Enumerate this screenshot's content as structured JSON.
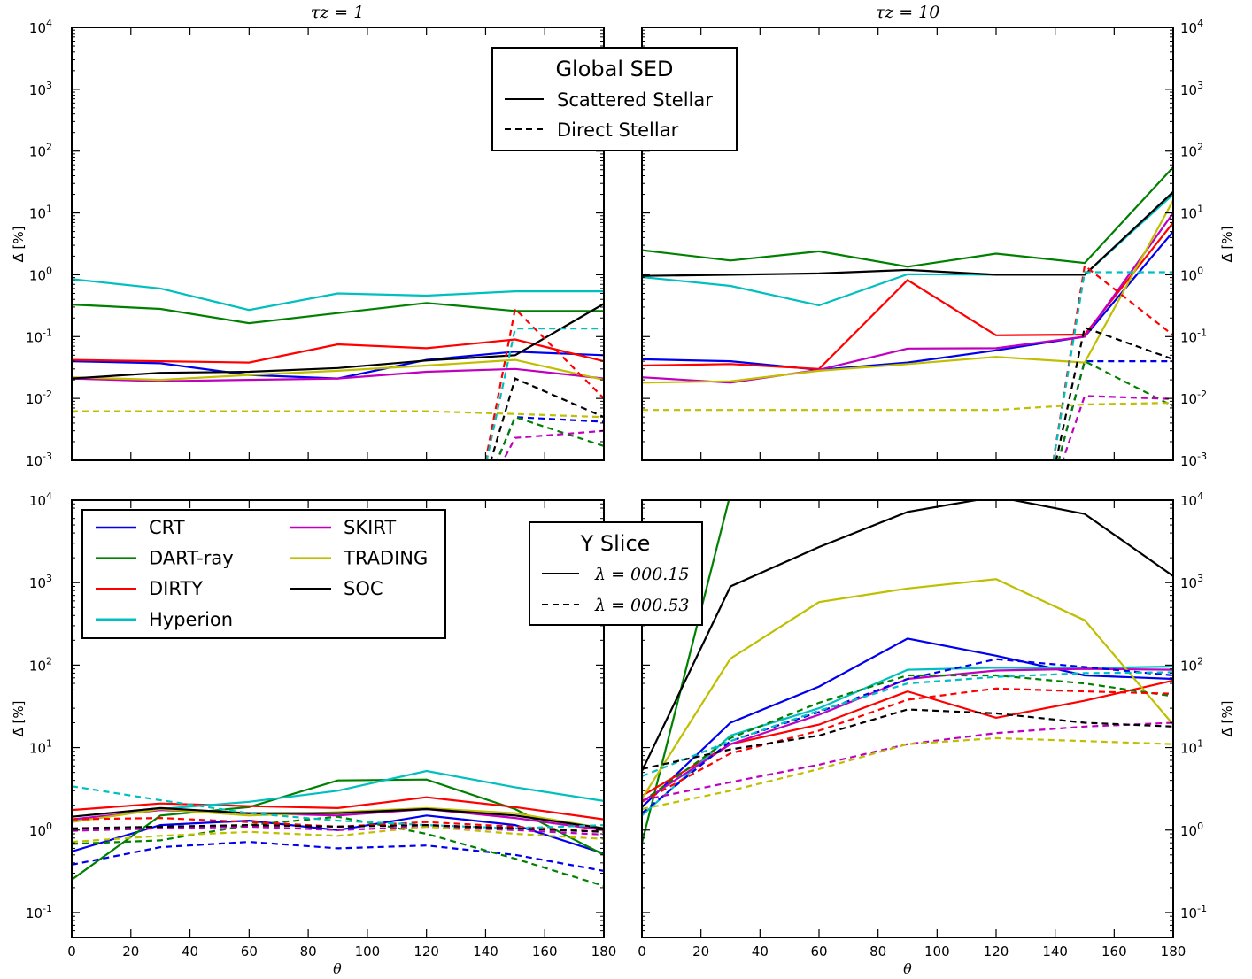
{
  "colors": {
    "CRT": "#0000ee",
    "DART-ray": "#008000",
    "DIRTY": "#ff0000",
    "Hyperion": "#00bfbf",
    "SKIRT": "#bf00bf",
    "TRADING": "#bfbf00",
    "SOC": "#000000"
  },
  "axes": {
    "xlabel": "θ",
    "ylabel": "Δ̄ [%]",
    "xticks": [
      "0",
      "20",
      "40",
      "60",
      "80",
      "100",
      "120",
      "140",
      "160",
      "180"
    ]
  },
  "legends": {
    "global_title": "Global SED",
    "global_scattered": "Scattered Stellar",
    "global_direct": "Direct Stellar",
    "yslice_title": "Y Slice",
    "yslice_solid": "λ = 000.15",
    "yslice_dashed": "λ = 000.53",
    "models": [
      "CRT",
      "DART-ray",
      "DIRTY",
      "Hyperion",
      "SKIRT",
      "TRADING",
      "SOC"
    ]
  },
  "chart_data": [
    {
      "type": "line",
      "id": "p11",
      "title": "τz = 1",
      "xlim": [
        0,
        180
      ],
      "ylim": [
        0.001,
        10000
      ],
      "yscale": "log",
      "x": [
        0,
        30,
        60,
        90,
        120,
        150,
        180
      ],
      "series": [
        {
          "name": "CRT",
          "style": "solid",
          "values": [
            0.04,
            0.037,
            0.024,
            0.021,
            0.042,
            0.057,
            0.05
          ]
        },
        {
          "name": "DART-ray",
          "style": "solid",
          "values": [
            0.33,
            0.28,
            0.165,
            0.24,
            0.35,
            0.26,
            0.26
          ]
        },
        {
          "name": "DIRTY",
          "style": "solid",
          "values": [
            0.042,
            0.04,
            0.038,
            0.075,
            0.065,
            0.09,
            0.04
          ]
        },
        {
          "name": "Hyperion",
          "style": "solid",
          "values": [
            0.85,
            0.6,
            0.27,
            0.5,
            0.46,
            0.54,
            0.54
          ]
        },
        {
          "name": "SKIRT",
          "style": "solid",
          "values": [
            0.021,
            0.019,
            0.02,
            0.021,
            0.027,
            0.03,
            0.021
          ]
        },
        {
          "name": "TRADING",
          "style": "solid",
          "values": [
            0.022,
            0.02,
            0.024,
            0.028,
            0.034,
            0.042,
            0.02
          ]
        },
        {
          "name": "SOC",
          "style": "solid",
          "values": [
            0.021,
            0.026,
            0.027,
            0.031,
            0.041,
            0.05,
            0.34
          ]
        },
        {
          "name": "CRT",
          "style": "dashed",
          "values": [
            null,
            null,
            null,
            null,
            null,
            0.005,
            0.0042
          ]
        },
        {
          "name": "DART-ray",
          "style": "dashed",
          "values": [
            null,
            null,
            null,
            null,
            null,
            0.005,
            0.0017
          ]
        },
        {
          "name": "DIRTY",
          "style": "dashed",
          "values": [
            null,
            null,
            null,
            null,
            null,
            0.28,
            0.01
          ]
        },
        {
          "name": "Hyperion",
          "style": "dashed",
          "values": [
            null,
            null,
            null,
            null,
            null,
            0.135,
            0.135
          ]
        },
        {
          "name": "SKIRT",
          "style": "dashed",
          "values": [
            null,
            null,
            null,
            null,
            null,
            0.0023,
            0.003
          ]
        },
        {
          "name": "TRADING",
          "style": "dashed",
          "values": [
            0.0062,
            0.0062,
            0.0062,
            0.0062,
            0.0062,
            0.0056,
            0.005
          ]
        },
        {
          "name": "SOC",
          "style": "dashed",
          "values": [
            null,
            null,
            null,
            null,
            null,
            0.021,
            0.005
          ]
        }
      ]
    },
    {
      "type": "line",
      "id": "p12",
      "title": "τz = 10",
      "xlim": [
        0,
        180
      ],
      "ylim": [
        0.001,
        10000
      ],
      "yscale": "log",
      "x": [
        0,
        30,
        60,
        90,
        120,
        150,
        180
      ],
      "series": [
        {
          "name": "CRT",
          "style": "solid",
          "values": [
            0.043,
            0.04,
            0.029,
            0.038,
            0.06,
            0.1,
            5
          ]
        },
        {
          "name": "DART-ray",
          "style": "solid",
          "values": [
            2.5,
            1.7,
            2.4,
            1.35,
            2.2,
            1.55,
            55
          ]
        },
        {
          "name": "DIRTY",
          "style": "solid",
          "values": [
            0.034,
            0.036,
            0.03,
            0.82,
            0.105,
            0.108,
            7
          ]
        },
        {
          "name": "Hyperion",
          "style": "solid",
          "values": [
            0.92,
            0.66,
            0.32,
            1.02,
            1.0,
            1.0,
            20
          ]
        },
        {
          "name": "SKIRT",
          "style": "solid",
          "values": [
            0.022,
            0.018,
            0.029,
            0.064,
            0.065,
            0.1,
            10
          ]
        },
        {
          "name": "TRADING",
          "style": "solid",
          "values": [
            0.018,
            0.019,
            0.028,
            0.036,
            0.047,
            0.038,
            16
          ]
        },
        {
          "name": "SOC",
          "style": "solid",
          "values": [
            0.96,
            1.0,
            1.05,
            1.2,
            1.0,
            1.0,
            22
          ]
        },
        {
          "name": "CRT",
          "style": "dashed",
          "values": [
            null,
            null,
            null,
            null,
            null,
            0.04,
            0.04
          ]
        },
        {
          "name": "DART-ray",
          "style": "dashed",
          "values": [
            null,
            null,
            null,
            null,
            null,
            0.04,
            0.0075
          ]
        },
        {
          "name": "DIRTY",
          "style": "dashed",
          "values": [
            null,
            null,
            null,
            null,
            null,
            1.4,
            0.105
          ]
        },
        {
          "name": "Hyperion",
          "style": "dashed",
          "values": [
            null,
            null,
            null,
            null,
            null,
            1.1,
            1.1
          ]
        },
        {
          "name": "SKIRT",
          "style": "dashed",
          "values": [
            null,
            null,
            null,
            null,
            null,
            0.011,
            0.0098
          ]
        },
        {
          "name": "TRADING",
          "style": "dashed",
          "values": [
            0.0065,
            0.0065,
            0.0065,
            0.0065,
            0.0065,
            0.008,
            0.0085
          ]
        },
        {
          "name": "SOC",
          "style": "dashed",
          "values": [
            null,
            null,
            null,
            null,
            null,
            0.14,
            0.043
          ]
        }
      ]
    },
    {
      "type": "line",
      "id": "p21",
      "xlim": [
        0,
        180
      ],
      "ylim": [
        0.05,
        10000
      ],
      "yscale": "log",
      "x": [
        0,
        30,
        60,
        90,
        120,
        150,
        180
      ],
      "series": [
        {
          "name": "CRT",
          "style": "solid",
          "values": [
            0.55,
            1.15,
            1.3,
            1.0,
            1.5,
            1.15,
            0.52
          ]
        },
        {
          "name": "DART-ray",
          "style": "solid",
          "values": [
            0.25,
            1.5,
            1.9,
            4.0,
            4.1,
            1.8,
            0.5
          ]
        },
        {
          "name": "DIRTY",
          "style": "solid",
          "values": [
            1.75,
            2.1,
            1.95,
            1.85,
            2.5,
            1.9,
            1.35
          ]
        },
        {
          "name": "Hyperion",
          "style": "solid",
          "values": [
            1.3,
            1.8,
            2.2,
            3.0,
            5.2,
            3.3,
            2.25
          ]
        },
        {
          "name": "SKIRT",
          "style": "solid",
          "values": [
            1.35,
            1.75,
            1.6,
            1.5,
            1.8,
            1.4,
            1.0
          ]
        },
        {
          "name": "TRADING",
          "style": "solid",
          "values": [
            1.25,
            1.8,
            1.5,
            1.65,
            1.85,
            1.6,
            1.05
          ]
        },
        {
          "name": "SOC",
          "style": "solid",
          "values": [
            1.45,
            1.85,
            1.6,
            1.6,
            1.8,
            1.5,
            1.05
          ]
        },
        {
          "name": "CRT",
          "style": "dashed",
          "values": [
            0.38,
            0.62,
            0.72,
            0.6,
            0.65,
            0.5,
            0.32
          ]
        },
        {
          "name": "DART-ray",
          "style": "dashed",
          "values": [
            0.68,
            0.75,
            1.15,
            1.45,
            0.9,
            0.45,
            0.21
          ]
        },
        {
          "name": "DIRTY",
          "style": "dashed",
          "values": [
            1.35,
            1.4,
            1.25,
            1.1,
            1.25,
            1.1,
            0.95
          ]
        },
        {
          "name": "Hyperion",
          "style": "dashed",
          "values": [
            3.4,
            2.3,
            1.6,
            1.3,
            1.15,
            1.05,
            1.15
          ]
        },
        {
          "name": "SKIRT",
          "style": "dashed",
          "values": [
            0.98,
            1.05,
            1.1,
            1.0,
            1.1,
            1.0,
            0.88
          ]
        },
        {
          "name": "TRADING",
          "style": "dashed",
          "values": [
            0.72,
            0.85,
            0.95,
            0.85,
            1.1,
            0.9,
            0.78
          ]
        },
        {
          "name": "SOC",
          "style": "dashed",
          "values": [
            1.05,
            1.1,
            1.15,
            1.1,
            1.15,
            1.05,
            0.95
          ]
        }
      ]
    },
    {
      "type": "line",
      "id": "p22",
      "xlim": [
        0,
        180
      ],
      "ylim": [
        0.05,
        10000
      ],
      "yscale": "log",
      "x": [
        0,
        30,
        60,
        90,
        120,
        150,
        180
      ],
      "series": [
        {
          "name": "CRT",
          "style": "solid",
          "values": [
            1.9,
            20,
            55,
            210,
            130,
            75,
            68
          ]
        },
        {
          "name": "DART-ray",
          "style": "solid",
          "values": [
            0.7,
            12000,
            null,
            null,
            null,
            null,
            null
          ]
        },
        {
          "name": "DIRTY",
          "style": "solid",
          "values": [
            2.6,
            11,
            19,
            48,
            23,
            37,
            65
          ]
        },
        {
          "name": "Hyperion",
          "style": "solid",
          "values": [
            1.5,
            14,
            30,
            88,
            93,
            92,
            96
          ]
        },
        {
          "name": "SKIRT",
          "style": "solid",
          "values": [
            2.2,
            11,
            25,
            68,
            86,
            90,
            88
          ]
        },
        {
          "name": "TRADING",
          "style": "solid",
          "values": [
            2.4,
            120,
            580,
            850,
            1100,
            350,
            19
          ]
        },
        {
          "name": "SOC",
          "style": "solid",
          "values": [
            5.2,
            900,
            2700,
            7200,
            11000,
            6800,
            1200
          ]
        },
        {
          "name": "CRT",
          "style": "dashed",
          "values": [
            1.6,
            12,
            27,
            68,
            118,
            95,
            75
          ]
        },
        {
          "name": "DART-ray",
          "style": "dashed",
          "values": [
            2.2,
            13,
            35,
            75,
            75,
            60,
            42
          ]
        },
        {
          "name": "DIRTY",
          "style": "dashed",
          "values": [
            2.2,
            8.5,
            16,
            38,
            52,
            48,
            45
          ]
        },
        {
          "name": "Hyperion",
          "style": "dashed",
          "values": [
            4.5,
            12,
            28,
            60,
            72,
            80,
            82
          ]
        },
        {
          "name": "SKIRT",
          "style": "dashed",
          "values": [
            2.3,
            3.8,
            6.2,
            11,
            15,
            18,
            20
          ]
        },
        {
          "name": "TRADING",
          "style": "dashed",
          "values": [
            1.8,
            3.0,
            5.5,
            11,
            13,
            12,
            11
          ]
        },
        {
          "name": "SOC",
          "style": "dashed",
          "values": [
            5.5,
            9.5,
            14,
            29,
            26,
            20,
            18
          ]
        }
      ]
    }
  ]
}
